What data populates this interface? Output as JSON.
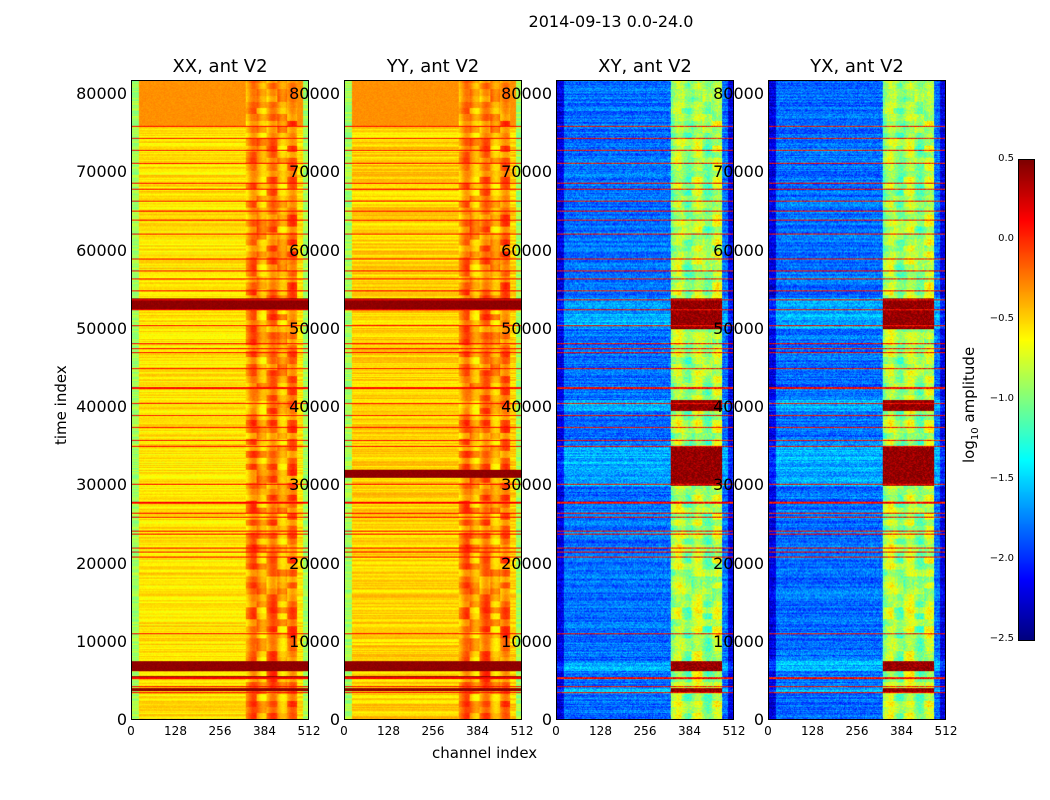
{
  "chart_data": {
    "type": "heatmap",
    "title": "2014-09-13 0.0-24.0",
    "xlabel": "channel index",
    "ylabel": "time index",
    "xlim": [
      0,
      512
    ],
    "ylim": [
      0,
      81800
    ],
    "xticks": [
      "0",
      "128",
      "256",
      "384",
      "512"
    ],
    "yticks": [
      "0",
      "10000",
      "20000",
      "30000",
      "40000",
      "50000",
      "60000",
      "70000",
      "80000"
    ],
    "colorbar": {
      "label": "log10 amplitude",
      "range": [
        -2.5,
        0.5
      ],
      "ticks": [
        "0.5",
        "0.0",
        "−0.5",
        "−1.0",
        "−1.5",
        "−2.0",
        "−2.5"
      ],
      "colormap": "jet"
    },
    "flagged_rows": [
      3500,
      4200,
      5300,
      11000,
      20800,
      21500,
      22000,
      23800,
      24200,
      26000,
      26500,
      27800,
      30200,
      35000,
      35800,
      37500,
      39000,
      40500,
      42500,
      45000,
      47000,
      47500,
      48200,
      50500,
      52500,
      53800,
      55000,
      56500,
      57500,
      59000,
      62300,
      64000,
      65200,
      66500,
      68000,
      68800,
      71300,
      73000,
      74500,
      76000
    ],
    "panels": [
      {
        "title": "XX, ant V2",
        "base": -0.55,
        "band": -0.3,
        "band_channels": [
          330,
          480
        ],
        "strong_rows": [
          [
            5200,
            5600
          ],
          [
            6200,
            7500
          ],
          [
            52500,
            54000
          ],
          [
            3600,
            4000
          ]
        ],
        "top_region": [
          76000,
          81800,
          -0.3
        ],
        "edge": -0.9
      },
      {
        "title": "YY, ant V2",
        "base": -0.5,
        "band": -0.3,
        "band_channels": [
          330,
          480
        ],
        "strong_rows": [
          [
            5200,
            5600
          ],
          [
            6200,
            7500
          ],
          [
            52500,
            54000
          ],
          [
            31000,
            32000
          ],
          [
            3600,
            4000
          ]
        ],
        "top_region": [
          76000,
          81800,
          -0.3
        ],
        "edge": -0.9
      },
      {
        "title": "XY, ant V2",
        "base": -1.8,
        "band": -0.9,
        "band_channels": [
          330,
          480
        ],
        "strong_rows": [
          [
            3500,
            4000
          ],
          [
            6200,
            7500
          ],
          [
            50000,
            54000
          ],
          [
            30000,
            35000
          ],
          [
            39500,
            41000
          ]
        ],
        "top_region": null,
        "edge": -2.2
      },
      {
        "title": "YX, ant V2",
        "base": -1.8,
        "band": -0.9,
        "band_channels": [
          330,
          480
        ],
        "strong_rows": [
          [
            3500,
            4000
          ],
          [
            6200,
            7500
          ],
          [
            50000,
            54000
          ],
          [
            30000,
            35000
          ],
          [
            39500,
            41000
          ]
        ],
        "top_region": null,
        "edge": -2.2
      }
    ]
  }
}
